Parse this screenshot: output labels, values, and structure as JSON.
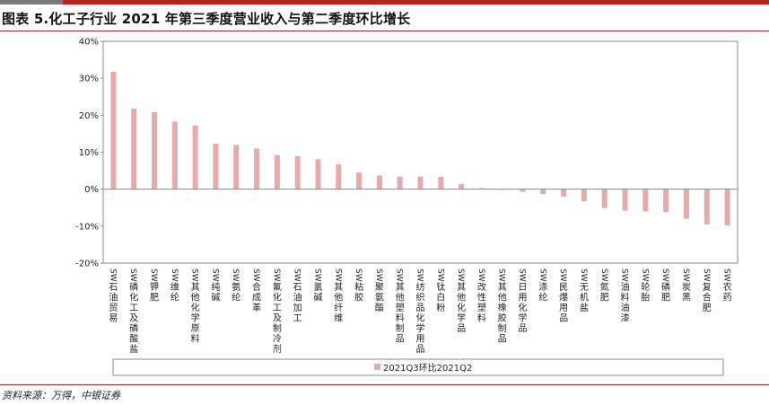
{
  "header": {
    "title": "图表 5.化工子行业 2021 年第三季度营业收入与第二季度环比增长"
  },
  "footer": {
    "source": "资料来源：万得，中银证券"
  },
  "colors": {
    "bar": "#e8a9a9",
    "brand_red": "#b3261e",
    "brand_grey": "#7a7a7a"
  },
  "chart_data": {
    "type": "bar",
    "title": "",
    "xlabel": "",
    "ylabel": "",
    "ylim": [
      -20,
      40
    ],
    "yticks": [
      "40%",
      "30%",
      "20%",
      "10%",
      "0%",
      "-10%",
      "-20%"
    ],
    "grid": false,
    "legend_position": "bottom",
    "categories": [
      "SW石油贸易",
      "SW磷化工及磷酸盐",
      "SW钾肥",
      "SW维纶",
      "SW其他化学原料",
      "SW纯碱",
      "SW氨纶",
      "SW合成革",
      "SW氟化工及制冷剂",
      "SW石油加工",
      "SW氯碱",
      "SW其他纤维",
      "SW粘胶",
      "SW聚氨酯",
      "SW其他塑料制品",
      "SW纺织品化学用品",
      "SW钛白粉",
      "SW其他化学品",
      "SW改性塑料",
      "SW其他橡胶制品",
      "SW日用化学品",
      "SW涤纶",
      "SW民爆用品",
      "SW无机盐",
      "SW氮肥",
      "SW油料油漆",
      "SW轮胎",
      "SW磷肥",
      "SW炭黑",
      "SW复合肥",
      "SW农药"
    ],
    "series": [
      {
        "name": "2021Q3环比2021Q2",
        "values": [
          31.8,
          21.8,
          20.8,
          18.3,
          17.2,
          12.3,
          12.0,
          11.0,
          9.2,
          8.9,
          8.1,
          6.7,
          4.5,
          3.7,
          3.4,
          3.4,
          3.3,
          1.4,
          0.3,
          -0.2,
          -0.7,
          -1.3,
          -2.0,
          -3.3,
          -5.1,
          -5.8,
          -6.0,
          -6.2,
          -8.0,
          -9.5,
          -9.8
        ]
      }
    ]
  }
}
